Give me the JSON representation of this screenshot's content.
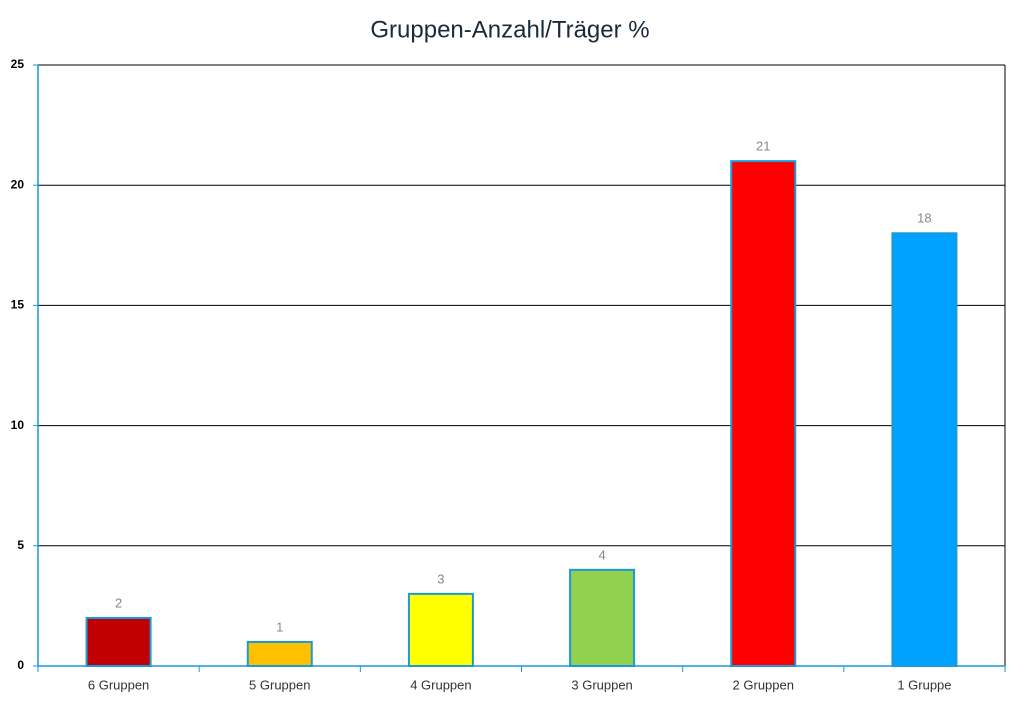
{
  "chart_data": {
    "type": "bar",
    "title": "Gruppen-Anzahl/Träger %",
    "categories": [
      "6 Gruppen",
      "5 Gruppen",
      "4 Gruppen",
      "3 Gruppen",
      "2 Gruppen",
      "1 Gruppe"
    ],
    "values": [
      2,
      1,
      3,
      4,
      21,
      18
    ],
    "colors": [
      "#c00000",
      "#ffc000",
      "#ffff00",
      "#92d050",
      "#ff0000",
      "#00a2ff"
    ],
    "ylim": [
      0,
      25
    ],
    "yticks": [
      0,
      5,
      10,
      15,
      20,
      25
    ],
    "grid": true
  }
}
